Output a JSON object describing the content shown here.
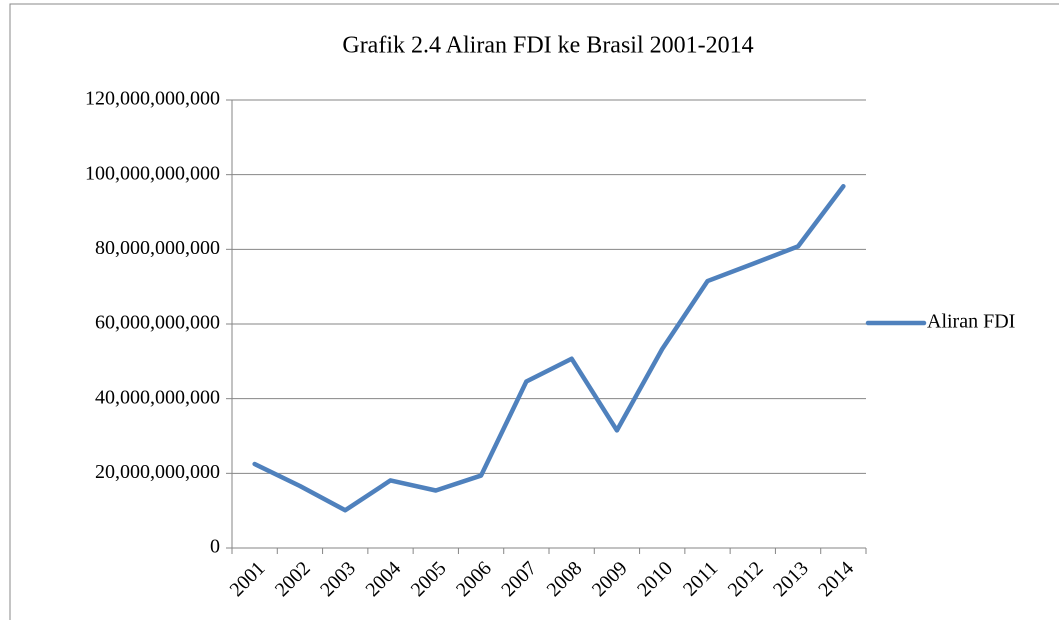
{
  "chart_data": {
    "type": "line",
    "title": "Grafik 2.4 Aliran FDI ke Brasil 2001-2014",
    "categories": [
      "2001",
      "2002",
      "2003",
      "2004",
      "2005",
      "2006",
      "2007",
      "2008",
      "2009",
      "2010",
      "2011",
      "2012",
      "2013",
      "2014"
    ],
    "series": [
      {
        "name": "Aliran FDI",
        "color": "#4f81bd",
        "values": [
          22500000000,
          16600000000,
          10100000000,
          18100000000,
          15400000000,
          19400000000,
          44600000000,
          50700000000,
          31500000000,
          53300000000,
          71500000000,
          76100000000,
          80800000000,
          96900000000
        ]
      }
    ],
    "ylim": [
      0,
      120000000000
    ],
    "yticks": [
      0,
      {
        "value": 20000000000,
        "label": "20,000,000,000"
      },
      {
        "value": 40000000000,
        "label": "40,000,000,000"
      },
      {
        "value": 60000000000,
        "label": "60,000,000,000"
      },
      {
        "value": 80000000000,
        "label": "80,000,000,000"
      },
      {
        "value": 100000000000,
        "label": "100,000,000,000"
      },
      {
        "value": 120000000000,
        "label": "120,000,000,000"
      }
    ],
    "grid": true,
    "legend": "right"
  }
}
